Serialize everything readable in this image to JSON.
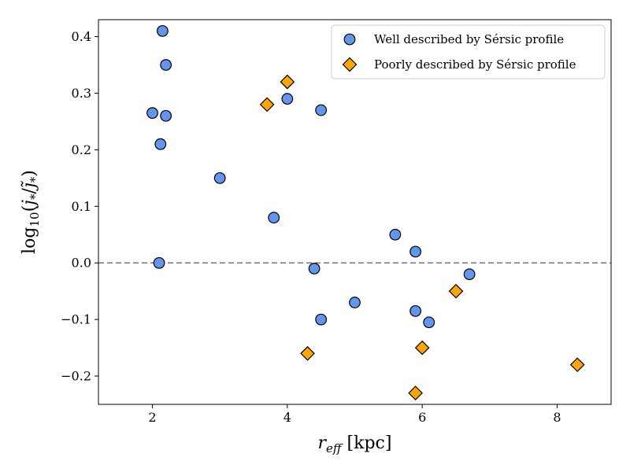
{
  "chart_data": {
    "type": "scatter",
    "xlabel": "r_eff [kpc]",
    "ylabel": "log10(j*/j~*)",
    "xlim": [
      1.2,
      8.8
    ],
    "ylim": [
      -0.25,
      0.43
    ],
    "xticks": [
      2,
      4,
      6,
      8
    ],
    "yticks": [
      -0.2,
      -0.1,
      0.0,
      0.1,
      0.2,
      0.3,
      0.4
    ],
    "xtick_labels": [
      "2",
      "4",
      "6",
      "8"
    ],
    "ytick_labels": [
      "−0.2",
      "−0.1",
      "0.0",
      "0.1",
      "0.2",
      "0.3",
      "0.4"
    ],
    "grid": false,
    "reference_line": {
      "y": 0.0,
      "style": "dashed",
      "color": "#808080"
    },
    "legend": {
      "placement": "top-right"
    },
    "series": [
      {
        "name": "Well described by Sérsic profile",
        "marker": "circle",
        "color": "#6495ED",
        "points": [
          {
            "x": 2.0,
            "y": 0.265
          },
          {
            "x": 2.15,
            "y": 0.41
          },
          {
            "x": 2.2,
            "y": 0.35
          },
          {
            "x": 2.2,
            "y": 0.26
          },
          {
            "x": 2.12,
            "y": 0.21
          },
          {
            "x": 2.1,
            "y": 0.0
          },
          {
            "x": 3.0,
            "y": 0.15
          },
          {
            "x": 3.8,
            "y": 0.08
          },
          {
            "x": 4.0,
            "y": 0.29
          },
          {
            "x": 4.5,
            "y": 0.27
          },
          {
            "x": 4.4,
            "y": -0.01
          },
          {
            "x": 4.5,
            "y": -0.1
          },
          {
            "x": 5.0,
            "y": -0.07
          },
          {
            "x": 5.6,
            "y": 0.05
          },
          {
            "x": 5.9,
            "y": 0.02
          },
          {
            "x": 5.9,
            "y": -0.085
          },
          {
            "x": 6.1,
            "y": -0.105
          },
          {
            "x": 6.7,
            "y": -0.02
          }
        ]
      },
      {
        "name": "Poorly described by Sérsic profile",
        "marker": "diamond",
        "color": "#FFA500",
        "points": [
          {
            "x": 3.7,
            "y": 0.28
          },
          {
            "x": 4.0,
            "y": 0.32
          },
          {
            "x": 4.3,
            "y": -0.16
          },
          {
            "x": 5.9,
            "y": -0.23
          },
          {
            "x": 6.0,
            "y": -0.15
          },
          {
            "x": 6.5,
            "y": -0.05
          },
          {
            "x": 8.3,
            "y": -0.18
          }
        ]
      }
    ]
  }
}
